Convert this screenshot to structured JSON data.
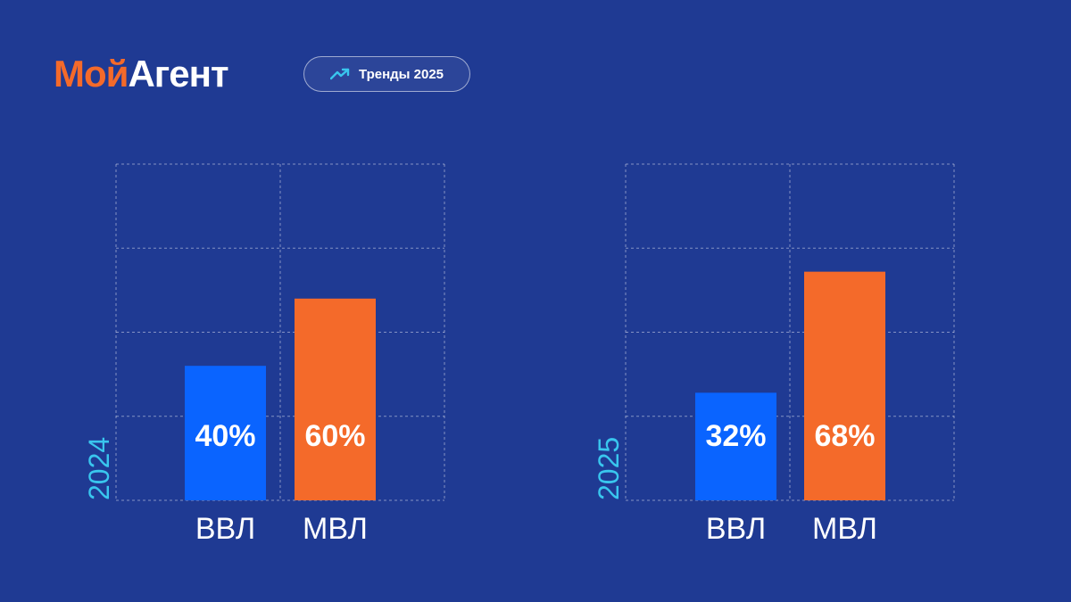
{
  "brand": {
    "name_part1": "Мой",
    "name_part2": "Агент",
    "part1_color": "#f46a2a",
    "part2_color": "#ffffff"
  },
  "badge": {
    "label": "Тренды 2025",
    "icon": "trending-up-icon"
  },
  "colors": {
    "background": "#1f3a93",
    "bar_vvl": "#0a64ff",
    "bar_mvl": "#f46a2a",
    "year_label": "#39c6ee",
    "grid": "rgba(255,255,255,0.45)"
  },
  "chart_data": [
    {
      "type": "bar",
      "year_label": "2024",
      "categories": [
        "ВВЛ",
        "МВЛ"
      ],
      "values": [
        40,
        60
      ],
      "value_labels": [
        "40%",
        "60%"
      ],
      "ylim": [
        0,
        100
      ],
      "grid": true
    },
    {
      "type": "bar",
      "year_label": "2025",
      "categories": [
        "ВВЛ",
        "МВЛ"
      ],
      "values": [
        32,
        68
      ],
      "value_labels": [
        "32%",
        "68%"
      ],
      "ylim": [
        0,
        100
      ],
      "grid": true
    }
  ]
}
